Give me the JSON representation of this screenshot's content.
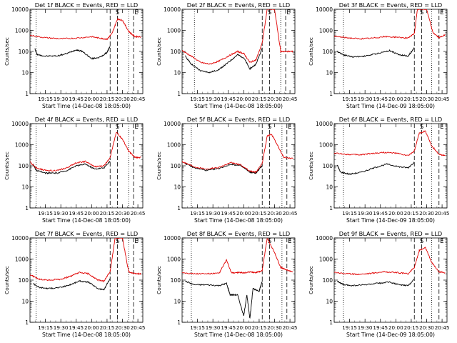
{
  "chart_data": [
    {
      "type": "line",
      "title": "Det 1f BLACK = Events, RED = LLD",
      "ylabel": "Counts/sec",
      "xlabel": "Start Time (14-Dec-08 18:05:00)",
      "x_tick_labels": [
        "19:15",
        "19:30",
        "19:45",
        "20:00",
        "20:15",
        "20:30",
        "20:45"
      ],
      "x_ticks": [
        19.25,
        19.5,
        19.75,
        20.0,
        20.25,
        20.5,
        20.75
      ],
      "xlim": [
        19.0,
        20.83
      ],
      "y_scale": "log",
      "y_tick_labels": [
        "1",
        "10",
        "100",
        "1000",
        "10000"
      ],
      "ylim": [
        1,
        10000
      ],
      "markers": [
        {
          "x": 19.1,
          "style": "dotted"
        },
        {
          "x": 20.3,
          "style": "dashed"
        },
        {
          "x": 20.42,
          "style": "dashed",
          "label": "S"
        },
        {
          "x": 20.6,
          "style": "dotted"
        },
        {
          "x": 20.68,
          "style": "dashed",
          "label": "E"
        }
      ],
      "series": [
        {
          "color": "#000000",
          "x": [
            19.08,
            19.12,
            19.25,
            19.45,
            19.6,
            19.75,
            19.85,
            20.0,
            20.15,
            20.25,
            20.3
          ],
          "y": [
            130,
            70,
            60,
            62,
            80,
            120,
            100,
            45,
            55,
            90,
            180
          ]
        },
        {
          "color": "#e00000",
          "x": [
            19.0,
            19.25,
            19.5,
            19.75,
            20.0,
            20.15,
            20.25,
            20.33,
            20.42,
            20.5,
            20.6,
            20.7,
            20.8
          ],
          "y": [
            580,
            450,
            400,
            430,
            500,
            420,
            380,
            700,
            3500,
            3000,
            900,
            500,
            500
          ]
        }
      ]
    },
    {
      "type": "line",
      "title": "Det 2f BLACK = Events, RED = LLD",
      "ylabel": "Counts/sec",
      "xlabel": "Start Time (14-Dec-08 18:05:00)",
      "x_tick_labels": [
        "19:15",
        "19:30",
        "19:45",
        "20:00",
        "20:15",
        "20:30",
        "20:45"
      ],
      "x_ticks": [
        19.25,
        19.5,
        19.75,
        20.0,
        20.25,
        20.5,
        20.75
      ],
      "xlim": [
        19.0,
        20.83
      ],
      "y_scale": "log",
      "y_tick_labels": [
        "1",
        "10",
        "100",
        "1000",
        "10000"
      ],
      "ylim": [
        1,
        10000
      ],
      "markers": [
        {
          "x": 19.2,
          "style": "dotted"
        },
        {
          "x": 20.3,
          "style": "dashed"
        },
        {
          "x": 20.42,
          "style": "dashed",
          "label": "S"
        },
        {
          "x": 20.6,
          "style": "dotted"
        },
        {
          "x": 20.68,
          "style": "dashed",
          "label": "E"
        }
      ],
      "series": [
        {
          "color": "#000000",
          "x": [
            19.05,
            19.15,
            19.3,
            19.45,
            19.6,
            19.75,
            19.9,
            20.0,
            20.1,
            20.2,
            20.3
          ],
          "y": [
            60,
            25,
            12,
            10,
            14,
            30,
            70,
            50,
            15,
            25,
            150
          ]
        },
        {
          "color": "#e00000",
          "x": [
            19.0,
            19.15,
            19.3,
            19.45,
            19.6,
            19.75,
            19.9,
            20.0,
            20.1,
            20.2,
            20.3,
            20.38,
            20.5,
            20.6,
            20.7,
            20.8
          ],
          "y": [
            110,
            60,
            30,
            25,
            35,
            60,
            100,
            80,
            30,
            40,
            250,
            10000,
            10000,
            100,
            100,
            100
          ]
        }
      ]
    },
    {
      "type": "line",
      "title": "Det 3f BLACK = Events, RED = LLD",
      "ylabel": "Counts/sec",
      "xlabel": "Start Time (14-Dec-09 18:05:00)",
      "x_tick_labels": [
        "19:15",
        "19:30",
        "19:45",
        "20:00",
        "20:15",
        "20:30",
        "20:45"
      ],
      "x_ticks": [
        19.25,
        19.5,
        19.75,
        20.0,
        20.25,
        20.5,
        20.75
      ],
      "xlim": [
        19.0,
        20.83
      ],
      "y_scale": "log",
      "y_tick_labels": [
        "1",
        "10",
        "100",
        "1000",
        "10000"
      ],
      "ylim": [
        1,
        10000
      ],
      "markers": [
        {
          "x": 19.15,
          "style": "dotted"
        },
        {
          "x": 20.3,
          "style": "dashed"
        },
        {
          "x": 20.42,
          "style": "dashed",
          "label": "S"
        },
        {
          "x": 20.58,
          "style": "dotted"
        },
        {
          "x": 20.7,
          "style": "dashed",
          "label": "E"
        }
      ],
      "series": [
        {
          "color": "#000000",
          "x": [
            19.05,
            19.15,
            19.3,
            19.5,
            19.7,
            19.9,
            20.05,
            20.2,
            20.3
          ],
          "y": [
            100,
            70,
            55,
            60,
            80,
            110,
            70,
            60,
            150
          ]
        },
        {
          "color": "#e00000",
          "x": [
            19.0,
            19.2,
            19.4,
            19.6,
            19.8,
            20.0,
            20.2,
            20.3,
            20.35,
            20.5,
            20.6,
            20.7,
            20.8
          ],
          "y": [
            520,
            450,
            400,
            420,
            500,
            480,
            430,
            700,
            10000,
            10000,
            800,
            450,
            600
          ]
        }
      ]
    },
    {
      "type": "line",
      "title": "Det 4f BLACK = Events, RED = LLD",
      "ylabel": "Counts/sec",
      "xlabel": "Start Time (14-Dec-08 18:05:00)",
      "x_tick_labels": [
        "19:15",
        "19:30",
        "19:45",
        "20:00",
        "20:15",
        "20:30",
        "20:45"
      ],
      "x_ticks": [
        19.25,
        19.5,
        19.75,
        20.0,
        20.25,
        20.5,
        20.75
      ],
      "xlim": [
        19.0,
        20.83
      ],
      "y_scale": "log",
      "y_tick_labels": [
        "1",
        "10",
        "100",
        "1000",
        "10000"
      ],
      "ylim": [
        1,
        10000
      ],
      "markers": [
        {
          "x": 19.1,
          "style": "dotted"
        },
        {
          "x": 20.3,
          "style": "dashed"
        },
        {
          "x": 20.42,
          "style": "dashed",
          "label": "S"
        },
        {
          "x": 20.6,
          "style": "dotted"
        },
        {
          "x": 20.68,
          "style": "dashed",
          "label": "E"
        }
      ],
      "series": [
        {
          "color": "#000000",
          "x": [
            19.05,
            19.1,
            19.25,
            19.45,
            19.6,
            19.75,
            19.9,
            20.05,
            20.2,
            20.3
          ],
          "y": [
            120,
            60,
            45,
            45,
            60,
            100,
            120,
            70,
            80,
            170
          ]
        },
        {
          "color": "#e00000",
          "x": [
            19.0,
            19.1,
            19.25,
            19.45,
            19.6,
            19.75,
            19.9,
            20.05,
            20.2,
            20.3,
            20.4,
            20.5,
            20.6,
            20.7,
            20.8
          ],
          "y": [
            150,
            80,
            60,
            60,
            80,
            140,
            160,
            90,
            100,
            250,
            4000,
            1800,
            500,
            250,
            250
          ]
        }
      ]
    },
    {
      "type": "line",
      "title": "Det 5f BLACK = Events, RED = LLD",
      "ylabel": "Counts/sec",
      "xlabel": "Start Time (14-Dec-08 18:05:00)",
      "x_tick_labels": [
        "19:15",
        "19:30",
        "19:45",
        "20:00",
        "20:15",
        "20:30",
        "20:45"
      ],
      "x_ticks": [
        19.25,
        19.5,
        19.75,
        20.0,
        20.25,
        20.5,
        20.75
      ],
      "xlim": [
        19.0,
        20.83
      ],
      "y_scale": "log",
      "y_tick_labels": [
        "1",
        "10",
        "100",
        "1000",
        "10000"
      ],
      "ylim": [
        1,
        10000
      ],
      "markers": [
        {
          "x": 19.15,
          "style": "dotted"
        },
        {
          "x": 20.3,
          "style": "dashed"
        },
        {
          "x": 20.42,
          "style": "dashed",
          "label": "S"
        },
        {
          "x": 20.62,
          "style": "dotted"
        },
        {
          "x": 20.7,
          "style": "dashed",
          "label": "E"
        }
      ],
      "series": [
        {
          "color": "#000000",
          "x": [
            19.05,
            19.2,
            19.4,
            19.6,
            19.8,
            19.95,
            20.1,
            20.2,
            20.3
          ],
          "y": [
            130,
            80,
            60,
            75,
            120,
            100,
            50,
            45,
            100
          ]
        },
        {
          "color": "#e00000",
          "x": [
            19.0,
            19.2,
            19.4,
            19.6,
            19.8,
            19.95,
            20.1,
            20.2,
            20.3,
            20.38,
            20.45,
            20.55,
            20.65,
            20.8
          ],
          "y": [
            160,
            90,
            70,
            85,
            140,
            110,
            55,
            50,
            130,
            2500,
            3200,
            900,
            250,
            220
          ]
        }
      ]
    },
    {
      "type": "line",
      "title": "Det 6f BLACK = Events, RED = LLD",
      "ylabel": "Counts/sec",
      "xlabel": "Start Time (14-Dec-09 18:05:00)",
      "x_tick_labels": [
        "19:15",
        "19:30",
        "19:45",
        "20:00",
        "20:15",
        "20:30",
        "20:45"
      ],
      "x_ticks": [
        19.25,
        19.5,
        19.75,
        20.0,
        20.25,
        20.5,
        20.75
      ],
      "xlim": [
        19.0,
        20.83
      ],
      "y_scale": "log",
      "y_tick_labels": [
        "1",
        "10",
        "100",
        "1000",
        "10000"
      ],
      "ylim": [
        1,
        10000
      ],
      "markers": [
        {
          "x": 19.15,
          "style": "dotted"
        },
        {
          "x": 20.3,
          "style": "dashed"
        },
        {
          "x": 20.42,
          "style": "dashed",
          "label": "S"
        },
        {
          "x": 20.58,
          "style": "dotted"
        },
        {
          "x": 20.7,
          "style": "dashed",
          "label": "E"
        }
      ],
      "series": [
        {
          "color": "#000000",
          "x": [
            19.05,
            19.1,
            19.25,
            19.45,
            19.65,
            19.85,
            20.05,
            20.2,
            20.3
          ],
          "y": [
            110,
            50,
            40,
            50,
            80,
            120,
            90,
            80,
            150
          ]
        },
        {
          "color": "#e00000",
          "x": [
            19.0,
            19.2,
            19.4,
            19.6,
            19.8,
            20.0,
            20.2,
            20.3,
            20.38,
            20.48,
            20.58,
            20.7,
            20.8
          ],
          "y": [
            400,
            350,
            330,
            380,
            430,
            400,
            300,
            500,
            3500,
            4500,
            900,
            350,
            300
          ]
        }
      ]
    },
    {
      "type": "line",
      "title": "Det 7f BLACK = Events, RED = LLD",
      "ylabel": "Counts/sec",
      "xlabel": "Start Time (14-Dec-08 18:05:00)",
      "x_tick_labels": [
        "19:15",
        "19:30",
        "19:45",
        "20:00",
        "20:15",
        "20:30",
        "20:45"
      ],
      "x_ticks": [
        19.25,
        19.5,
        19.75,
        20.0,
        20.25,
        20.5,
        20.75
      ],
      "xlim": [
        19.0,
        20.83
      ],
      "y_scale": "log",
      "y_tick_labels": [
        "1",
        "10",
        "100",
        "1000",
        "10000"
      ],
      "ylim": [
        1,
        10000
      ],
      "markers": [
        {
          "x": 19.1,
          "style": "dotted"
        },
        {
          "x": 20.3,
          "style": "dashed"
        },
        {
          "x": 20.42,
          "style": "dashed",
          "label": "S"
        },
        {
          "x": 20.6,
          "style": "dotted"
        },
        {
          "x": 20.68,
          "style": "dashed",
          "label": "E"
        }
      ],
      "series": [
        {
          "color": "#000000",
          "x": [
            19.05,
            19.15,
            19.3,
            19.5,
            19.65,
            19.8,
            19.95,
            20.1,
            20.2,
            20.3
          ],
          "y": [
            70,
            45,
            40,
            45,
            60,
            90,
            80,
            40,
            35,
            120
          ]
        },
        {
          "color": "#e00000",
          "x": [
            19.0,
            19.15,
            19.3,
            19.5,
            19.65,
            19.8,
            19.95,
            20.1,
            20.2,
            20.3,
            20.38,
            20.5,
            20.6,
            20.7,
            20.8
          ],
          "y": [
            180,
            110,
            100,
            110,
            150,
            230,
            200,
            100,
            90,
            250,
            10000,
            10000,
            250,
            200,
            200
          ]
        }
      ]
    },
    {
      "type": "line",
      "title": "Det 8f BLACK = Events, RED = LLD",
      "ylabel": "Counts/sec",
      "xlabel": "Start Time (14-Dec-08 18:05:00)",
      "x_tick_labels": [
        "19:15",
        "19:30",
        "19:45",
        "20:00",
        "20:15",
        "20:30",
        "20:45"
      ],
      "x_ticks": [
        19.25,
        19.5,
        19.75,
        20.0,
        20.25,
        20.5,
        20.75
      ],
      "xlim": [
        19.0,
        20.83
      ],
      "y_scale": "log",
      "y_tick_labels": [
        "1",
        "10",
        "100",
        "1000",
        "10000"
      ],
      "ylim": [
        1,
        10000
      ],
      "markers": [
        {
          "x": 19.15,
          "style": "dotted"
        },
        {
          "x": 20.3,
          "style": "dashed"
        },
        {
          "x": 20.42,
          "style": "dashed",
          "label": "S"
        },
        {
          "x": 20.62,
          "style": "dotted"
        },
        {
          "x": 20.7,
          "style": "dashed",
          "label": "E"
        }
      ],
      "series": [
        {
          "color": "#000000",
          "x": [
            19.05,
            19.2,
            19.4,
            19.6,
            19.72,
            19.78,
            19.9,
            20.0,
            20.05,
            20.1,
            20.15,
            20.25,
            20.3
          ],
          "y": [
            90,
            60,
            60,
            55,
            70,
            20,
            20,
            2,
            20,
            1.5,
            40,
            30,
            90
          ]
        },
        {
          "color": "#e00000",
          "x": [
            19.0,
            19.2,
            19.4,
            19.6,
            19.72,
            19.8,
            19.9,
            20.0,
            20.1,
            20.2,
            20.3,
            20.38,
            20.5,
            20.6,
            20.7,
            20.8
          ],
          "y": [
            230,
            200,
            200,
            210,
            900,
            220,
            230,
            220,
            240,
            230,
            280,
            10000,
            2000,
            400,
            300,
            250
          ]
        }
      ]
    },
    {
      "type": "line",
      "title": "Det 9f BLACK = Events, RED = LLD",
      "ylabel": "Counts/sec",
      "xlabel": "Start Time (14-Dec-09 18:05:00)",
      "x_tick_labels": [
        "19:15",
        "19:30",
        "19:45",
        "20:00",
        "20:15",
        "20:30",
        "20:45"
      ],
      "x_ticks": [
        19.25,
        19.5,
        19.75,
        20.0,
        20.25,
        20.5,
        20.75
      ],
      "xlim": [
        19.0,
        20.83
      ],
      "y_scale": "log",
      "y_tick_labels": [
        "1",
        "10",
        "100",
        "1000",
        "10000"
      ],
      "ylim": [
        1,
        10000
      ],
      "markers": [
        {
          "x": 19.15,
          "style": "dotted"
        },
        {
          "x": 20.3,
          "style": "dashed"
        },
        {
          "x": 20.42,
          "style": "dashed",
          "label": "S"
        },
        {
          "x": 20.58,
          "style": "dotted"
        },
        {
          "x": 20.7,
          "style": "dashed",
          "label": "E"
        }
      ],
      "series": [
        {
          "color": "#000000",
          "x": [
            19.05,
            19.15,
            19.3,
            19.5,
            19.7,
            19.9,
            20.05,
            20.2,
            20.3
          ],
          "y": [
            90,
            60,
            55,
            60,
            70,
            80,
            60,
            55,
            110
          ]
        },
        {
          "color": "#e00000",
          "x": [
            19.0,
            19.2,
            19.4,
            19.6,
            19.8,
            20.0,
            20.2,
            20.3,
            20.38,
            20.48,
            20.58,
            20.7,
            20.8
          ],
          "y": [
            240,
            200,
            190,
            210,
            250,
            230,
            200,
            400,
            2500,
            3500,
            700,
            250,
            220
          ]
        }
      ]
    }
  ]
}
